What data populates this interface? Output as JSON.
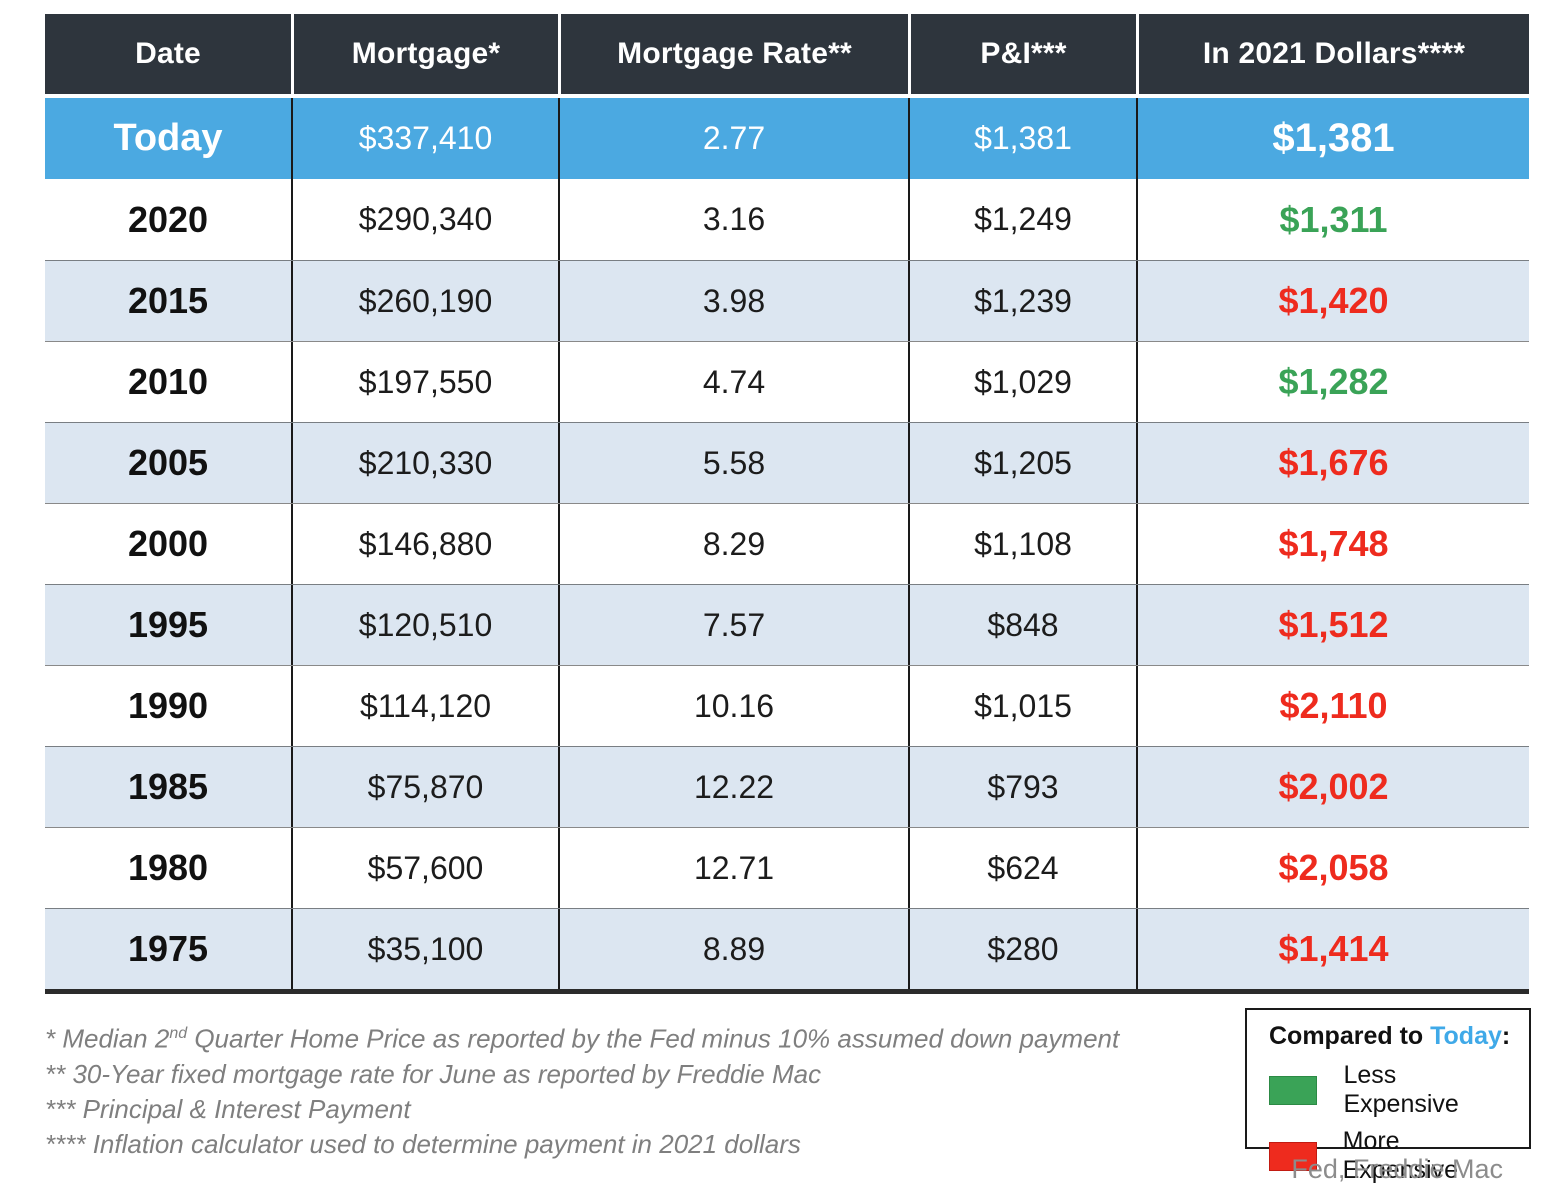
{
  "chart_data": {
    "type": "table",
    "columns": [
      "Date",
      "Mortgage*",
      "Mortgage Rate**",
      "P&I***",
      "In 2021 Dollars****"
    ],
    "rows": [
      {
        "date": "Today",
        "mortgage": "$337,410",
        "rate": "2.77",
        "pi": "$1,381",
        "in_2021_dollars": "$1,381",
        "compare": "today"
      },
      {
        "date": "2020",
        "mortgage": "$290,340",
        "rate": "3.16",
        "pi": "$1,249",
        "in_2021_dollars": "$1,311",
        "compare": "less"
      },
      {
        "date": "2015",
        "mortgage": "$260,190",
        "rate": "3.98",
        "pi": "$1,239",
        "in_2021_dollars": "$1,420",
        "compare": "more"
      },
      {
        "date": "2010",
        "mortgage": "$197,550",
        "rate": "4.74",
        "pi": "$1,029",
        "in_2021_dollars": "$1,282",
        "compare": "less"
      },
      {
        "date": "2005",
        "mortgage": "$210,330",
        "rate": "5.58",
        "pi": "$1,205",
        "in_2021_dollars": "$1,676",
        "compare": "more"
      },
      {
        "date": "2000",
        "mortgage": "$146,880",
        "rate": "8.29",
        "pi": "$1,108",
        "in_2021_dollars": "$1,748",
        "compare": "more"
      },
      {
        "date": "1995",
        "mortgage": "$120,510",
        "rate": "7.57",
        "pi": "$848",
        "in_2021_dollars": "$1,512",
        "compare": "more"
      },
      {
        "date": "1990",
        "mortgage": "$114,120",
        "rate": "10.16",
        "pi": "$1,015",
        "in_2021_dollars": "$2,110",
        "compare": "more"
      },
      {
        "date": "1985",
        "mortgage": "$75,870",
        "rate": "12.22",
        "pi": "$793",
        "in_2021_dollars": "$2,002",
        "compare": "more"
      },
      {
        "date": "1980",
        "mortgage": "$57,600",
        "rate": "12.71",
        "pi": "$624",
        "in_2021_dollars": "$2,058",
        "compare": "more"
      },
      {
        "date": "1975",
        "mortgage": "$35,100",
        "rate": "8.89",
        "pi": "$280",
        "in_2021_dollars": "$1,414",
        "compare": "more"
      }
    ],
    "legend_position": "bottom-right",
    "grid": "row-banding"
  },
  "footnotes": {
    "f1_pre": "* Median 2",
    "f1_sup": "nd",
    "f1_post": " Quarter Home Price as reported by the Fed minus 10% assumed down payment",
    "f2": "** 30-Year fixed mortgage rate for June as reported by Freddie Mac",
    "f3": "*** Principal & Interest Payment",
    "f4": "**** Inflation calculator used to determine payment in 2021 dollars"
  },
  "legend": {
    "title_prefix": "Compared to ",
    "title_accent": "Today",
    "title_suffix": ":",
    "items": [
      {
        "label": "Less Expensive",
        "color": "#3aa357"
      },
      {
        "label": "More Expensive",
        "color": "#ee2b1e"
      }
    ]
  },
  "source": "Fed, Freddie Mac",
  "colors": {
    "header_bg": "#2e353d",
    "today_row_bg": "#4ba9e1",
    "band_row_bg": "#dce6f1",
    "less_expensive_green": "#3aa357",
    "more_expensive_red": "#ee2b1e",
    "accent_blue": "#3fa9e8",
    "footnote_gray": "#7f7f7f"
  }
}
